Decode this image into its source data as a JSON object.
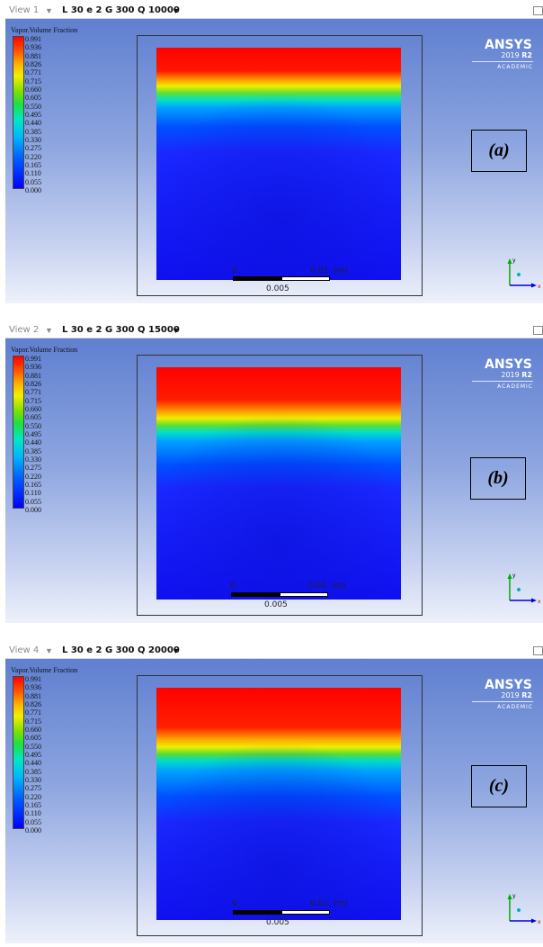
{
  "legend": {
    "title": "Vapor.Volume Fraction",
    "ticks": [
      "0.991",
      "0.936",
      "0.881",
      "0.826",
      "0.771",
      "0.715",
      "0.660",
      "0.605",
      "0.550",
      "0.495",
      "0.440",
      "0.385",
      "0.330",
      "0.275",
      "0.220",
      "0.165",
      "0.110",
      "0.055",
      "0.000"
    ]
  },
  "branding": {
    "name": "ANSYS",
    "version_prefix": "2019 ",
    "version_suffix": "R2",
    "edition": "ACADEMIC"
  },
  "scale": {
    "zero": "0",
    "max": "0.01",
    "unit": "(m)",
    "mid": "0.005"
  },
  "axes": {
    "x": "x",
    "y": "y"
  },
  "colors": {
    "vapor": "#ff0000",
    "liquid": "#0000ff",
    "background_top": "#5f7fd0",
    "background_bottom": "#eef1fb"
  },
  "panels": [
    {
      "view_label": "View 1",
      "title": "L 30 e 2 G 300 Q 10000",
      "label": "(a)"
    },
    {
      "view_label": "View 2",
      "title": "L 30 e 2 G 300 Q 15000",
      "label": "(b)"
    },
    {
      "view_label": "View 4",
      "title": "L 30 e 2 G 300 Q 20000",
      "label": "(c)"
    }
  ]
}
